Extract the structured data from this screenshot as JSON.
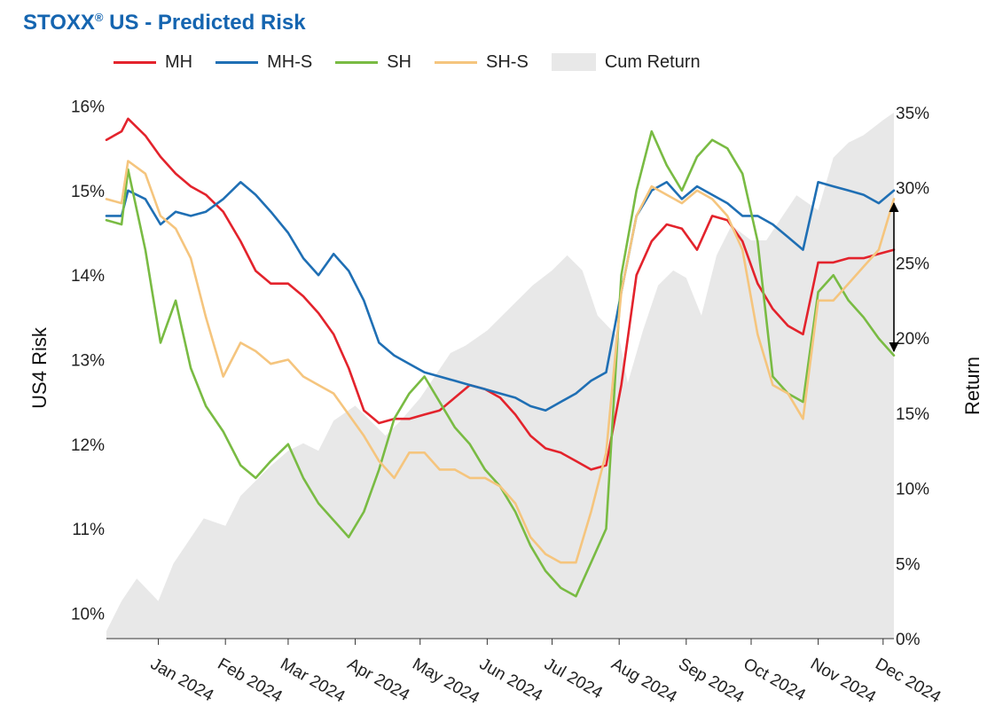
{
  "title": {
    "main": "STOXX",
    "sup": "®",
    "rest": " US - Predicted Risk"
  },
  "colors": {
    "MH": "#e3232c",
    "MH-S": "#1f6fb4",
    "SH": "#79bb43",
    "SH-S": "#f5c57e",
    "Cum Return": "#e8e8e8"
  },
  "legend": [
    {
      "name": "MH",
      "type": "line",
      "color": "#e3232c"
    },
    {
      "name": "MH-S",
      "type": "line",
      "color": "#1f6fb4"
    },
    {
      "name": "SH",
      "type": "line",
      "color": "#79bb43"
    },
    {
      "name": "SH-S",
      "type": "line",
      "color": "#f5c57e"
    },
    {
      "name": "Cum Return",
      "type": "area",
      "color": "#e8e8e8"
    }
  ],
  "chart_data": {
    "type": "line",
    "ylabel_left": "US4 Risk",
    "ylabel_right": "Return",
    "yticks_left": [
      "16%",
      "15%",
      "14%",
      "13%",
      "12%",
      "11%",
      "10%"
    ],
    "yticks_right": [
      "35%",
      "30%",
      "25%",
      "20%",
      "15%",
      "10%",
      "5%",
      "0%"
    ],
    "ylim_left": [
      9.7,
      16.1
    ],
    "ylim_right": [
      0,
      36
    ],
    "x_labels": [
      "Jan 2024",
      "Feb 2024",
      "Mar 2024",
      "Apr 2024",
      "May 2024",
      "Jun 2024",
      "Jul 2024",
      "Aug 2024",
      "Sep 2024",
      "Oct 2024",
      "Nov 2024",
      "Dec 2024"
    ],
    "x_label_dates": [
      "2024-01-01",
      "2024-02-01",
      "2024-03-01",
      "2024-04-01",
      "2024-05-01",
      "2024-06-01",
      "2024-07-01",
      "2024-08-01",
      "2024-09-01",
      "2024-10-01",
      "2024-11-01",
      "2024-12-01"
    ],
    "x_start": "2023-12-08",
    "x_end": "2024-12-06",
    "series": [
      {
        "name": "MH",
        "axis": "left",
        "x": [
          "2023-12-08",
          "2023-12-15",
          "2023-12-18",
          "2023-12-26",
          "2024-01-02",
          "2024-01-09",
          "2024-01-16",
          "2024-01-23",
          "2024-01-31",
          "2024-02-08",
          "2024-02-15",
          "2024-02-22",
          "2024-03-01",
          "2024-03-08",
          "2024-03-15",
          "2024-03-22",
          "2024-03-29",
          "2024-04-05",
          "2024-04-12",
          "2024-04-19",
          "2024-04-26",
          "2024-05-03",
          "2024-05-10",
          "2024-05-17",
          "2024-05-24",
          "2024-05-31",
          "2024-06-07",
          "2024-06-14",
          "2024-06-21",
          "2024-06-28",
          "2024-07-05",
          "2024-07-12",
          "2024-07-19",
          "2024-07-26",
          "2024-08-02",
          "2024-08-09",
          "2024-08-16",
          "2024-08-23",
          "2024-08-30",
          "2024-09-06",
          "2024-09-13",
          "2024-09-20",
          "2024-09-27",
          "2024-10-04",
          "2024-10-11",
          "2024-10-18",
          "2024-10-25",
          "2024-11-01",
          "2024-11-08",
          "2024-11-15",
          "2024-11-22",
          "2024-11-29",
          "2024-12-06"
        ],
        "values": [
          15.6,
          15.7,
          15.85,
          15.65,
          15.4,
          15.2,
          15.05,
          14.95,
          14.75,
          14.4,
          14.05,
          13.9,
          13.9,
          13.75,
          13.55,
          13.3,
          12.9,
          12.4,
          12.25,
          12.3,
          12.3,
          12.35,
          12.4,
          12.55,
          12.7,
          12.65,
          12.55,
          12.35,
          12.1,
          11.95,
          11.9,
          11.8,
          11.7,
          11.75,
          12.7,
          14.0,
          14.4,
          14.6,
          14.55,
          14.3,
          14.7,
          14.65,
          14.4,
          13.9,
          13.6,
          13.4,
          13.3,
          14.15,
          14.15,
          14.2,
          14.2,
          14.25,
          14.3
        ]
      },
      {
        "name": "MH-S",
        "axis": "left",
        "x": [
          "2023-12-08",
          "2023-12-15",
          "2023-12-18",
          "2023-12-26",
          "2024-01-02",
          "2024-01-09",
          "2024-01-16",
          "2024-01-23",
          "2024-01-31",
          "2024-02-08",
          "2024-02-15",
          "2024-02-22",
          "2024-03-01",
          "2024-03-08",
          "2024-03-15",
          "2024-03-22",
          "2024-03-29",
          "2024-04-05",
          "2024-04-12",
          "2024-04-19",
          "2024-04-26",
          "2024-05-03",
          "2024-05-10",
          "2024-05-17",
          "2024-05-24",
          "2024-05-31",
          "2024-06-07",
          "2024-06-14",
          "2024-06-21",
          "2024-06-28",
          "2024-07-05",
          "2024-07-12",
          "2024-07-19",
          "2024-07-26",
          "2024-08-02",
          "2024-08-09",
          "2024-08-16",
          "2024-08-23",
          "2024-08-30",
          "2024-09-06",
          "2024-09-13",
          "2024-09-20",
          "2024-09-27",
          "2024-10-04",
          "2024-10-11",
          "2024-10-18",
          "2024-10-25",
          "2024-11-01",
          "2024-11-08",
          "2024-11-15",
          "2024-11-22",
          "2024-11-29",
          "2024-12-06"
        ],
        "values": [
          14.7,
          14.7,
          15.0,
          14.9,
          14.6,
          14.75,
          14.7,
          14.75,
          14.9,
          15.1,
          14.95,
          14.75,
          14.5,
          14.2,
          14.0,
          14.25,
          14.05,
          13.7,
          13.2,
          13.05,
          12.95,
          12.85,
          12.8,
          12.75,
          12.7,
          12.65,
          12.6,
          12.55,
          12.45,
          12.4,
          12.5,
          12.6,
          12.75,
          12.85,
          13.8,
          14.7,
          15.0,
          15.1,
          14.9,
          15.05,
          14.95,
          14.85,
          14.7,
          14.7,
          14.6,
          14.45,
          14.3,
          15.1,
          15.05,
          15.0,
          14.95,
          14.85,
          15.0
        ]
      },
      {
        "name": "SH",
        "axis": "left",
        "x": [
          "2023-12-08",
          "2023-12-15",
          "2023-12-18",
          "2023-12-26",
          "2024-01-02",
          "2024-01-09",
          "2024-01-16",
          "2024-01-23",
          "2024-01-31",
          "2024-02-08",
          "2024-02-15",
          "2024-02-22",
          "2024-03-01",
          "2024-03-08",
          "2024-03-15",
          "2024-03-22",
          "2024-03-29",
          "2024-04-05",
          "2024-04-12",
          "2024-04-19",
          "2024-04-26",
          "2024-05-03",
          "2024-05-10",
          "2024-05-17",
          "2024-05-24",
          "2024-05-31",
          "2024-06-07",
          "2024-06-14",
          "2024-06-21",
          "2024-06-28",
          "2024-07-05",
          "2024-07-12",
          "2024-07-19",
          "2024-07-26",
          "2024-08-02",
          "2024-08-09",
          "2024-08-16",
          "2024-08-23",
          "2024-08-30",
          "2024-09-06",
          "2024-09-13",
          "2024-09-20",
          "2024-09-27",
          "2024-10-04",
          "2024-10-11",
          "2024-10-18",
          "2024-10-25",
          "2024-11-01",
          "2024-11-08",
          "2024-11-15",
          "2024-11-22",
          "2024-11-29",
          "2024-12-06"
        ],
        "values": [
          14.65,
          14.6,
          15.25,
          14.3,
          13.2,
          13.7,
          12.9,
          12.45,
          12.15,
          11.75,
          11.6,
          11.8,
          12.0,
          11.6,
          11.3,
          11.1,
          10.9,
          11.2,
          11.7,
          12.3,
          12.6,
          12.8,
          12.5,
          12.2,
          12.0,
          11.7,
          11.5,
          11.2,
          10.8,
          10.5,
          10.3,
          10.2,
          10.6,
          11.0,
          14.0,
          15.0,
          15.7,
          15.3,
          15.0,
          15.4,
          15.6,
          15.5,
          15.2,
          14.4,
          12.8,
          12.6,
          12.5,
          13.8,
          14.0,
          13.7,
          13.5,
          13.25,
          13.05
        ]
      },
      {
        "name": "SH-S",
        "axis": "left",
        "x": [
          "2023-12-08",
          "2023-12-15",
          "2023-12-18",
          "2023-12-26",
          "2024-01-02",
          "2024-01-09",
          "2024-01-16",
          "2024-01-23",
          "2024-01-31",
          "2024-02-08",
          "2024-02-15",
          "2024-02-22",
          "2024-03-01",
          "2024-03-08",
          "2024-03-15",
          "2024-03-22",
          "2024-03-29",
          "2024-04-05",
          "2024-04-12",
          "2024-04-19",
          "2024-04-26",
          "2024-05-03",
          "2024-05-10",
          "2024-05-17",
          "2024-05-24",
          "2024-05-31",
          "2024-06-07",
          "2024-06-14",
          "2024-06-21",
          "2024-06-28",
          "2024-07-05",
          "2024-07-12",
          "2024-07-19",
          "2024-07-26",
          "2024-08-02",
          "2024-08-09",
          "2024-08-16",
          "2024-08-23",
          "2024-08-30",
          "2024-09-06",
          "2024-09-13",
          "2024-09-20",
          "2024-09-27",
          "2024-10-04",
          "2024-10-11",
          "2024-10-18",
          "2024-10-25",
          "2024-11-01",
          "2024-11-08",
          "2024-11-15",
          "2024-11-22",
          "2024-11-29",
          "2024-12-06"
        ],
        "values": [
          14.9,
          14.85,
          15.35,
          15.2,
          14.7,
          14.55,
          14.2,
          13.5,
          12.8,
          13.2,
          13.1,
          12.95,
          13.0,
          12.8,
          12.7,
          12.6,
          12.35,
          12.1,
          11.8,
          11.6,
          11.9,
          11.9,
          11.7,
          11.7,
          11.6,
          11.6,
          11.5,
          11.3,
          10.9,
          10.7,
          10.6,
          10.6,
          11.2,
          11.9,
          13.8,
          14.7,
          15.05,
          14.95,
          14.85,
          15.0,
          14.9,
          14.7,
          14.3,
          13.3,
          12.7,
          12.6,
          12.3,
          13.7,
          13.7,
          13.9,
          14.1,
          14.3,
          14.9
        ]
      },
      {
        "name": "Cum Return",
        "axis": "right",
        "type": "area",
        "x": [
          "2023-12-08",
          "2023-12-15",
          "2023-12-22",
          "2024-01-01",
          "2024-01-08",
          "2024-01-15",
          "2024-01-22",
          "2024-02-01",
          "2024-02-08",
          "2024-02-15",
          "2024-02-22",
          "2024-03-01",
          "2024-03-08",
          "2024-03-15",
          "2024-03-22",
          "2024-04-01",
          "2024-04-08",
          "2024-04-15",
          "2024-04-22",
          "2024-05-01",
          "2024-05-08",
          "2024-05-15",
          "2024-05-22",
          "2024-06-01",
          "2024-06-08",
          "2024-06-15",
          "2024-06-22",
          "2024-07-01",
          "2024-07-08",
          "2024-07-15",
          "2024-07-22",
          "2024-08-01",
          "2024-08-05",
          "2024-08-12",
          "2024-08-19",
          "2024-08-26",
          "2024-09-01",
          "2024-09-08",
          "2024-09-15",
          "2024-09-22",
          "2024-10-01",
          "2024-10-08",
          "2024-10-15",
          "2024-10-22",
          "2024-11-01",
          "2024-11-08",
          "2024-11-15",
          "2024-11-22",
          "2024-12-01",
          "2024-12-06"
        ],
        "values": [
          0.5,
          2.5,
          4.0,
          2.5,
          5.0,
          6.5,
          8.0,
          7.5,
          9.5,
          10.5,
          11.5,
          12.5,
          13.0,
          12.5,
          14.5,
          15.5,
          14.5,
          13.5,
          14.5,
          16.0,
          17.5,
          19.0,
          19.5,
          20.5,
          21.5,
          22.5,
          23.5,
          24.5,
          25.5,
          24.5,
          21.5,
          20.0,
          17.0,
          20.5,
          23.5,
          24.5,
          24.0,
          21.5,
          25.5,
          27.5,
          26.5,
          26.5,
          28.0,
          29.5,
          28.5,
          32.0,
          33.0,
          33.5,
          34.5,
          35.0
        ]
      }
    ],
    "annotation": {
      "type": "double-arrow",
      "x": "2024-12-06",
      "y_from": 14.85,
      "y_to": 13.1
    }
  }
}
